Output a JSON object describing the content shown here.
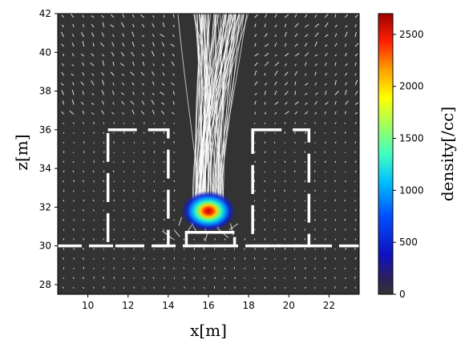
{
  "chart_data": {
    "type": "heatmap",
    "xlabel": "x[m]",
    "ylabel": "z[m]",
    "xlim": [
      8.5,
      23.5
    ],
    "ylim": [
      27.5,
      42
    ],
    "xticks": [
      10,
      12,
      14,
      16,
      18,
      20,
      22
    ],
    "yticks": [
      28,
      30,
      32,
      34,
      36,
      38,
      40,
      42
    ],
    "colorbar": {
      "label": "density[/cc]",
      "colormap": "jet",
      "range": [
        0,
        2700
      ],
      "ticks": [
        0,
        500,
        1000,
        1500,
        2000,
        2500
      ]
    },
    "density_peak": {
      "x": 16.0,
      "z": 31.8,
      "value": 2700
    },
    "plume_spread_x": [
      14.8,
      17.8
    ],
    "structures": [
      {
        "name": "left-room",
        "x": [
          11,
          14
        ],
        "z": [
          30,
          36
        ]
      },
      {
        "name": "right-room",
        "x": [
          18.2,
          21
        ],
        "z": [
          30,
          36
        ]
      },
      {
        "name": "center-box",
        "x": [
          14.9,
          17.3
        ],
        "z": [
          30,
          30.7
        ]
      }
    ],
    "floor_level_z": 30,
    "background_color": "#333333",
    "vector_color": "#ffffff"
  }
}
